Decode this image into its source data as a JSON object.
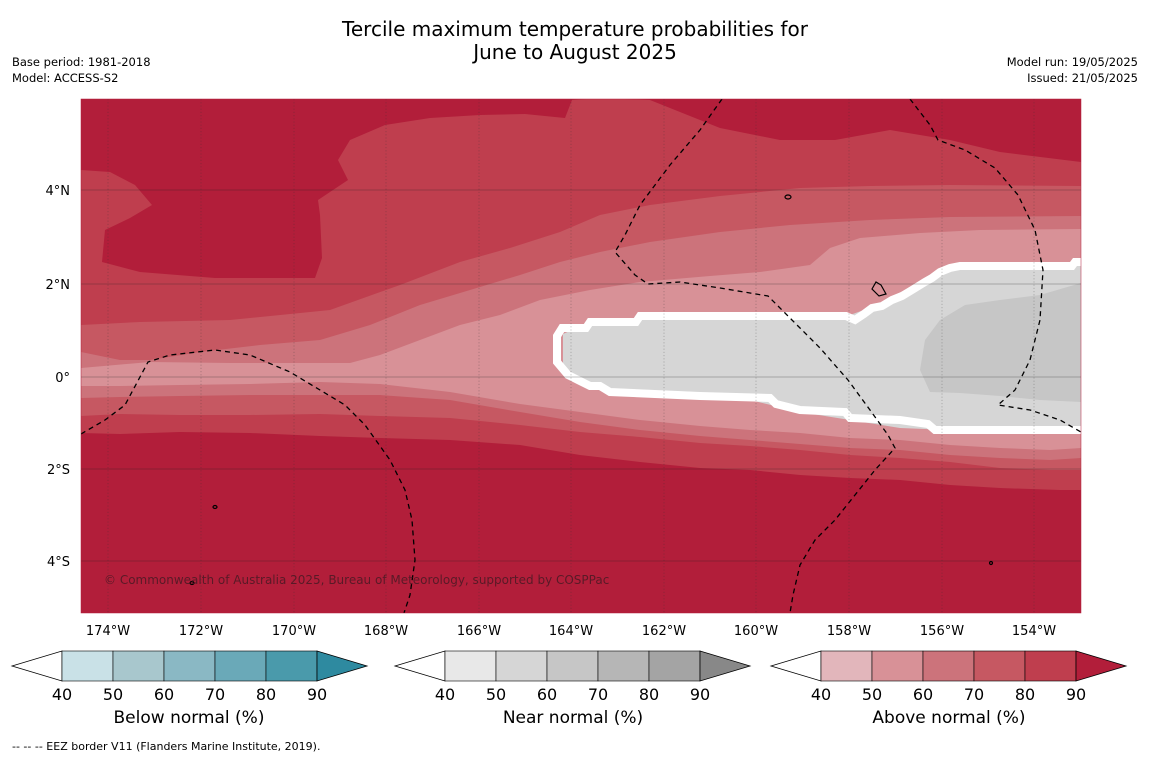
{
  "header": {
    "title_line1": "Tercile maximum temperature probabilities for",
    "title_line2": "June to August 2025",
    "base_period": "Base period: 1981-2018",
    "model": "Model: ACCESS-S2",
    "model_run": "Model run: 19/05/2025",
    "issued": "Issued: 21/05/2025"
  },
  "map": {
    "copyright": "© Commonwealth of Australia 2025, Bureau of Meteorology, supported by COSPPac",
    "lat_labels": [
      "4°N",
      "2°N",
      "0°",
      "2°S",
      "4°S"
    ],
    "lon_labels": [
      "174°W",
      "172°W",
      "170°W",
      "168°W",
      "166°W",
      "164°W",
      "162°W",
      "160°W",
      "158°W",
      "156°W",
      "154°W"
    ]
  },
  "colorbars": [
    {
      "title": "Below normal (%)",
      "ticks": [
        "40",
        "50",
        "60",
        "70",
        "80",
        "90"
      ],
      "colors": [
        "#ffffff",
        "#c9e1e7",
        "#a8c7cd",
        "#8ab8c4",
        "#6aa9b8",
        "#4a9aab",
        "#2e8aa0"
      ]
    },
    {
      "title": "Near normal (%)",
      "ticks": [
        "40",
        "50",
        "60",
        "70",
        "80",
        "90"
      ],
      "colors": [
        "#ffffff",
        "#e8e8e8",
        "#d6d6d6",
        "#c6c6c6",
        "#b6b6b6",
        "#a4a4a4",
        "#888888"
      ]
    },
    {
      "title": "Above normal (%)",
      "ticks": [
        "40",
        "50",
        "60",
        "70",
        "80",
        "90"
      ],
      "colors": [
        "#ffffff",
        "#e2b6bb",
        "#d89197",
        "#cc737b",
        "#c65862",
        "#bf3e4e",
        "#b21e3a"
      ]
    }
  ],
  "footer": "-- -- -- EEZ border V11 (Flanders Marine Institute, 2019)."
}
